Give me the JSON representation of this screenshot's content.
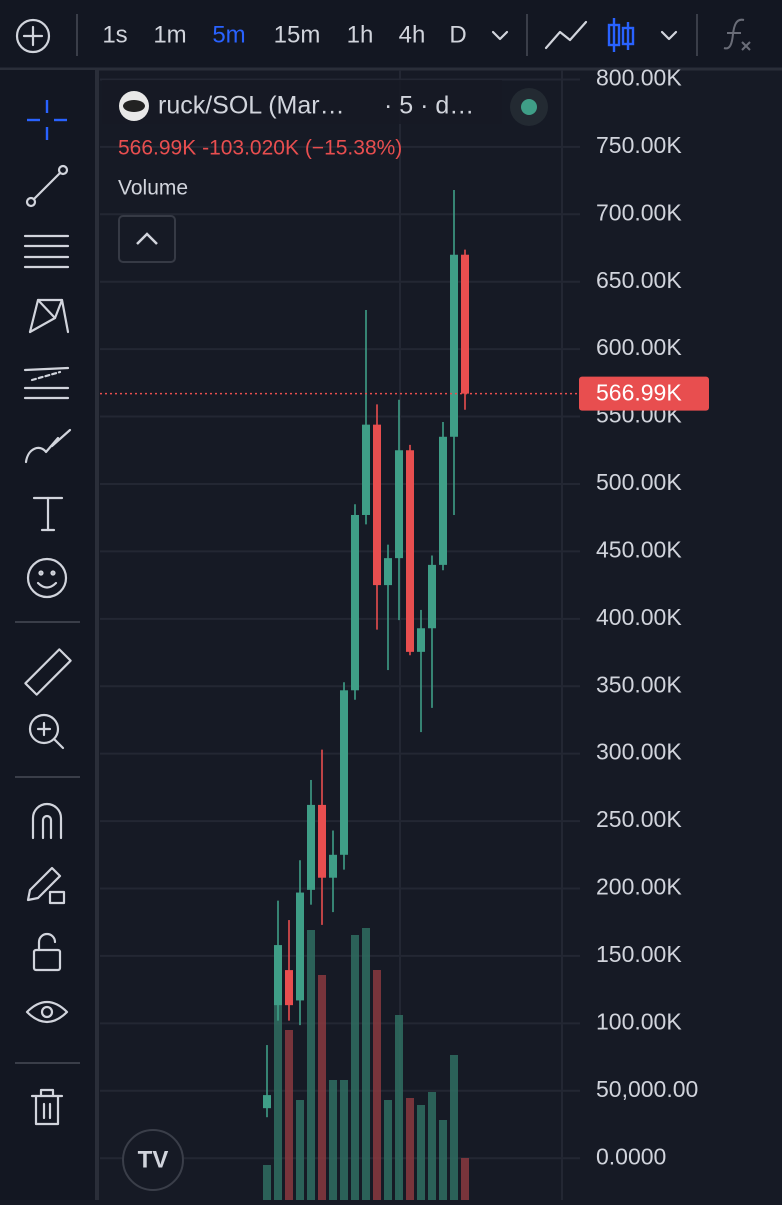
{
  "toolbar": {
    "intervals": [
      "1s",
      "1m",
      "5m",
      "15m",
      "1h",
      "4h",
      "D"
    ],
    "active_interval": "5m"
  },
  "chart_data": {
    "type": "candlestick",
    "symbol": "ruck/SOL (Mar…",
    "interval_info": "· 5 · d…",
    "price_info": "566.99K -103.020K (−15.38%)",
    "study": "Volume",
    "last_price": 566990,
    "last_price_label": "566.99K",
    "up_color": "#3f9e87",
    "down_color": "#e84e4f",
    "open": [
      37100,
      113500,
      139500,
      117000,
      199000,
      262000,
      208000,
      225000,
      347000,
      477000,
      544000,
      425000,
      445000,
      525000,
      375500,
      393000,
      440000,
      535000,
      670010
    ],
    "high": [
      83900,
      191000,
      176600,
      221000,
      280500,
      303000,
      243000,
      353000,
      485000,
      629000,
      559000,
      455000,
      562500,
      529000,
      406600,
      447000,
      546000,
      718000,
      673800
    ],
    "low": [
      30400,
      102000,
      102000,
      98700,
      188000,
      173000,
      182500,
      214000,
      340000,
      470000,
      392000,
      362000,
      399000,
      373000,
      316000,
      334000,
      436000,
      477000,
      555000
    ],
    "close": [
      46800,
      158000,
      113500,
      197000,
      262000,
      208000,
      225000,
      347000,
      477000,
      544000,
      425000,
      445000,
      525000,
      375500,
      393000,
      440000,
      535000,
      670000,
      566990
    ],
    "volume": [
      35,
      255,
      170,
      100,
      270,
      225,
      120,
      120,
      265,
      272,
      230,
      100,
      185,
      102,
      95,
      108,
      80,
      145,
      42
    ],
    "vlim": [
      0,
      1130
    ],
    "ylim": [
      -31000,
      807000
    ],
    "yticks": [
      {
        "value": 0,
        "label": "0.0000"
      },
      {
        "value": 50000,
        "label": "50,000.00"
      },
      {
        "value": 100000,
        "label": "100.00K"
      },
      {
        "value": 150000,
        "label": "150.00K"
      },
      {
        "value": 200000,
        "label": "200.00K"
      },
      {
        "value": 250000,
        "label": "250.00K"
      },
      {
        "value": 300000,
        "label": "300.00K"
      },
      {
        "value": 350000,
        "label": "350.00K"
      },
      {
        "value": 400000,
        "label": "400.00K"
      },
      {
        "value": 450000,
        "label": "450.00K"
      },
      {
        "value": 500000,
        "label": "500.00K"
      },
      {
        "value": 550000,
        "label": "550.00K"
      },
      {
        "value": 600000,
        "label": "600.00K"
      },
      {
        "value": 650000,
        "label": "650.00K"
      },
      {
        "value": 700000,
        "label": "700.00K"
      },
      {
        "value": 750000,
        "label": "750.00K"
      },
      {
        "value": 800000,
        "label": "800.00K"
      }
    ],
    "grid": true
  }
}
